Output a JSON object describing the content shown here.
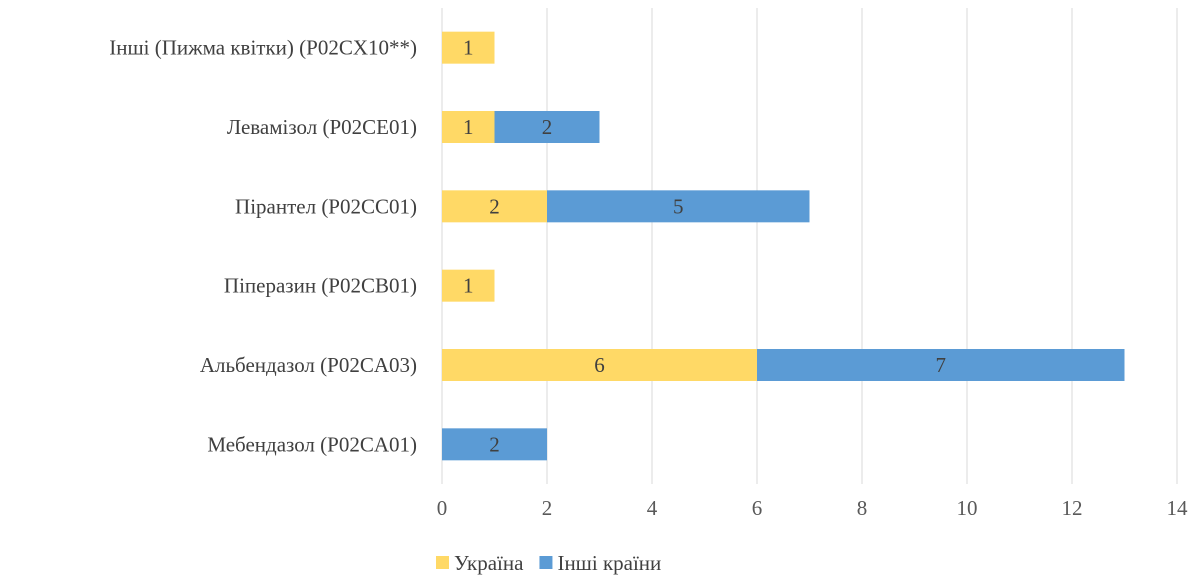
{
  "chart_data": {
    "type": "bar",
    "orientation": "horizontal",
    "stacked": true,
    "categories": [
      "Мебендазол (P02CA01)",
      "Альбендазол (P02CA03)",
      "Піперазин (P02CB01)",
      "Пірантел (P02CC01)",
      "Левамізол (P02CE01)",
      "Інші (Пижма квітки) (P02CX10**)"
    ],
    "series": [
      {
        "name": "Україна",
        "color": "#FFD966",
        "values": [
          0,
          6,
          1,
          2,
          1,
          1
        ]
      },
      {
        "name": "Інші країни",
        "color": "#5B9BD5",
        "values": [
          2,
          7,
          0,
          5,
          2,
          0
        ]
      }
    ],
    "xlim": [
      0,
      14
    ],
    "xticks": [
      0,
      2,
      4,
      6,
      8,
      10,
      12,
      14
    ],
    "grid": true,
    "legend_position": "bottom",
    "title": "",
    "xlabel": "",
    "ylabel": ""
  }
}
